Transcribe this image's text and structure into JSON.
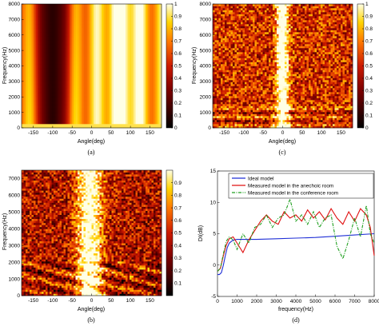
{
  "colors": {
    "ideal": "#1f2fd6",
    "anechoic": "#e01010",
    "conference": "#20a020",
    "heat_low": "#000000",
    "heat_mid": "#cc1a00",
    "heat_high": "#ffffe6"
  },
  "chart_data": [
    {
      "type": "heatmap",
      "caption": "(a)",
      "xlabel": "Angle(deg)",
      "ylabel": "Frequency(Hz)",
      "xlim": [
        -180,
        180
      ],
      "ylim": [
        0,
        8000
      ],
      "x_ticks": [
        "-150",
        "-100",
        "-50",
        "0",
        "50",
        "100",
        "150"
      ],
      "y_ticks": [
        "0",
        "1000",
        "2000",
        "3000",
        "4000",
        "5000",
        "6000",
        "7000",
        "8000"
      ],
      "colorbar": {
        "range": [
          0,
          1
        ],
        "ticks": [
          "0",
          "0.1",
          "0.2",
          "0.3",
          "0.4",
          "0.5",
          "0.6",
          "0.7",
          "0.8",
          "0.9",
          "1"
        ]
      },
      "pattern": "smooth main lobe of low response centred near -100 deg, high response near +80 deg"
    },
    {
      "type": "heatmap",
      "caption": "(c)",
      "xlabel": "Angle(deg)",
      "ylabel": "Frequency(Hz)",
      "xlim": [
        -180,
        180
      ],
      "ylim": [
        0,
        8000
      ],
      "x_ticks": [
        "-150",
        "-100",
        "-50",
        "0",
        "50",
        "100",
        "150"
      ],
      "y_ticks": [
        "0",
        "1000",
        "2000",
        "3000",
        "4000",
        "5000",
        "6000",
        "7000",
        "8000"
      ],
      "colorbar": {
        "range": [
          0,
          1
        ],
        "ticks": [
          "0",
          "0.1",
          "0.2",
          "0.3",
          "0.4",
          "0.5",
          "0.6",
          "0.7",
          "0.8",
          "0.9",
          "1"
        ]
      },
      "pattern": "noisy response with narrow high band centred near 0 deg"
    },
    {
      "type": "heatmap",
      "caption": "(b)",
      "xlabel": "Angle(deg)",
      "ylabel": "Frequency(Hz)",
      "xlim": [
        -180,
        180
      ],
      "ylim": [
        0,
        7500
      ],
      "x_ticks": [
        "-150",
        "-100",
        "-50",
        "0",
        "50",
        "100",
        "150"
      ],
      "y_ticks": [
        "0",
        "1000",
        "2000",
        "3000",
        "4000",
        "5000",
        "6000",
        "7000"
      ],
      "colorbar": {
        "range": [
          0,
          1
        ],
        "ticks": [
          "0.1",
          "0.2",
          "0.3",
          "0.4",
          "0.5",
          "0.6",
          "0.7",
          "0.8",
          "0.9"
        ]
      },
      "pattern": "noisy response with wide high band between -40 and 30 deg"
    },
    {
      "type": "line",
      "caption": "(d)",
      "xlabel": "frequency(Hz)",
      "ylabel": "DI(dB)",
      "xlim": [
        0,
        8000
      ],
      "ylim": [
        -5,
        15
      ],
      "grid": false,
      "legend_position": "top-left",
      "x_ticks": [
        "0",
        "1000",
        "2000",
        "3000",
        "4000",
        "5000",
        "6000",
        "7000",
        "8000"
      ],
      "y_ticks": [
        "-5",
        "0",
        "5",
        "10",
        "15"
      ],
      "series": [
        {
          "name": "Ideal model",
          "color": "#1f2fd6",
          "x": [
            0,
            100,
            200,
            300,
            400,
            500,
            600,
            800,
            1000,
            1500,
            2000,
            3000,
            4000,
            5000,
            6000,
            7000,
            8000
          ],
          "y": [
            -1.5,
            -1.5,
            -1.2,
            0.0,
            1.5,
            2.8,
            3.5,
            4.0,
            4.1,
            4.1,
            4.1,
            4.2,
            4.3,
            4.4,
            4.6,
            4.8,
            5.0
          ]
        },
        {
          "name": "Measured model in the anechoic room",
          "color": "#e01010",
          "x": [
            0,
            150,
            300,
            450,
            600,
            800,
            1000,
            1300,
            1600,
            1900,
            2200,
            2500,
            2800,
            3100,
            3400,
            3700,
            4000,
            4300,
            4600,
            4900,
            5200,
            5500,
            5800,
            6100,
            6400,
            6700,
            7000,
            7300,
            7600,
            7800,
            8000
          ],
          "y": [
            -1.0,
            -0.5,
            1.5,
            3.2,
            4.2,
            4.5,
            3.5,
            2.0,
            4.0,
            5.5,
            7.0,
            8.0,
            7.0,
            6.5,
            8.5,
            7.5,
            8.0,
            7.0,
            8.8,
            7.5,
            8.5,
            7.2,
            9.0,
            7.5,
            6.5,
            8.5,
            7.0,
            9.0,
            8.0,
            6.0,
            1.5
          ]
        },
        {
          "name": "Measured model in the conference room",
          "color": "#20a020",
          "x": [
            0,
            150,
            300,
            450,
            600,
            800,
            1000,
            1300,
            1600,
            1900,
            2200,
            2500,
            2800,
            3100,
            3400,
            3700,
            4000,
            4300,
            4600,
            4900,
            5200,
            5500,
            5800,
            6100,
            6400,
            6700,
            7000,
            7300,
            7600,
            7800,
            8000
          ],
          "y": [
            -1.0,
            -0.5,
            1.8,
            3.8,
            4.5,
            4.0,
            2.5,
            5.0,
            3.5,
            6.0,
            6.5,
            8.0,
            6.0,
            7.5,
            8.0,
            10.5,
            7.0,
            8.0,
            6.5,
            8.5,
            6.0,
            7.5,
            8.0,
            3.0,
            1.0,
            4.0,
            7.5,
            4.5,
            9.5,
            5.0,
            3.5
          ]
        }
      ]
    }
  ]
}
